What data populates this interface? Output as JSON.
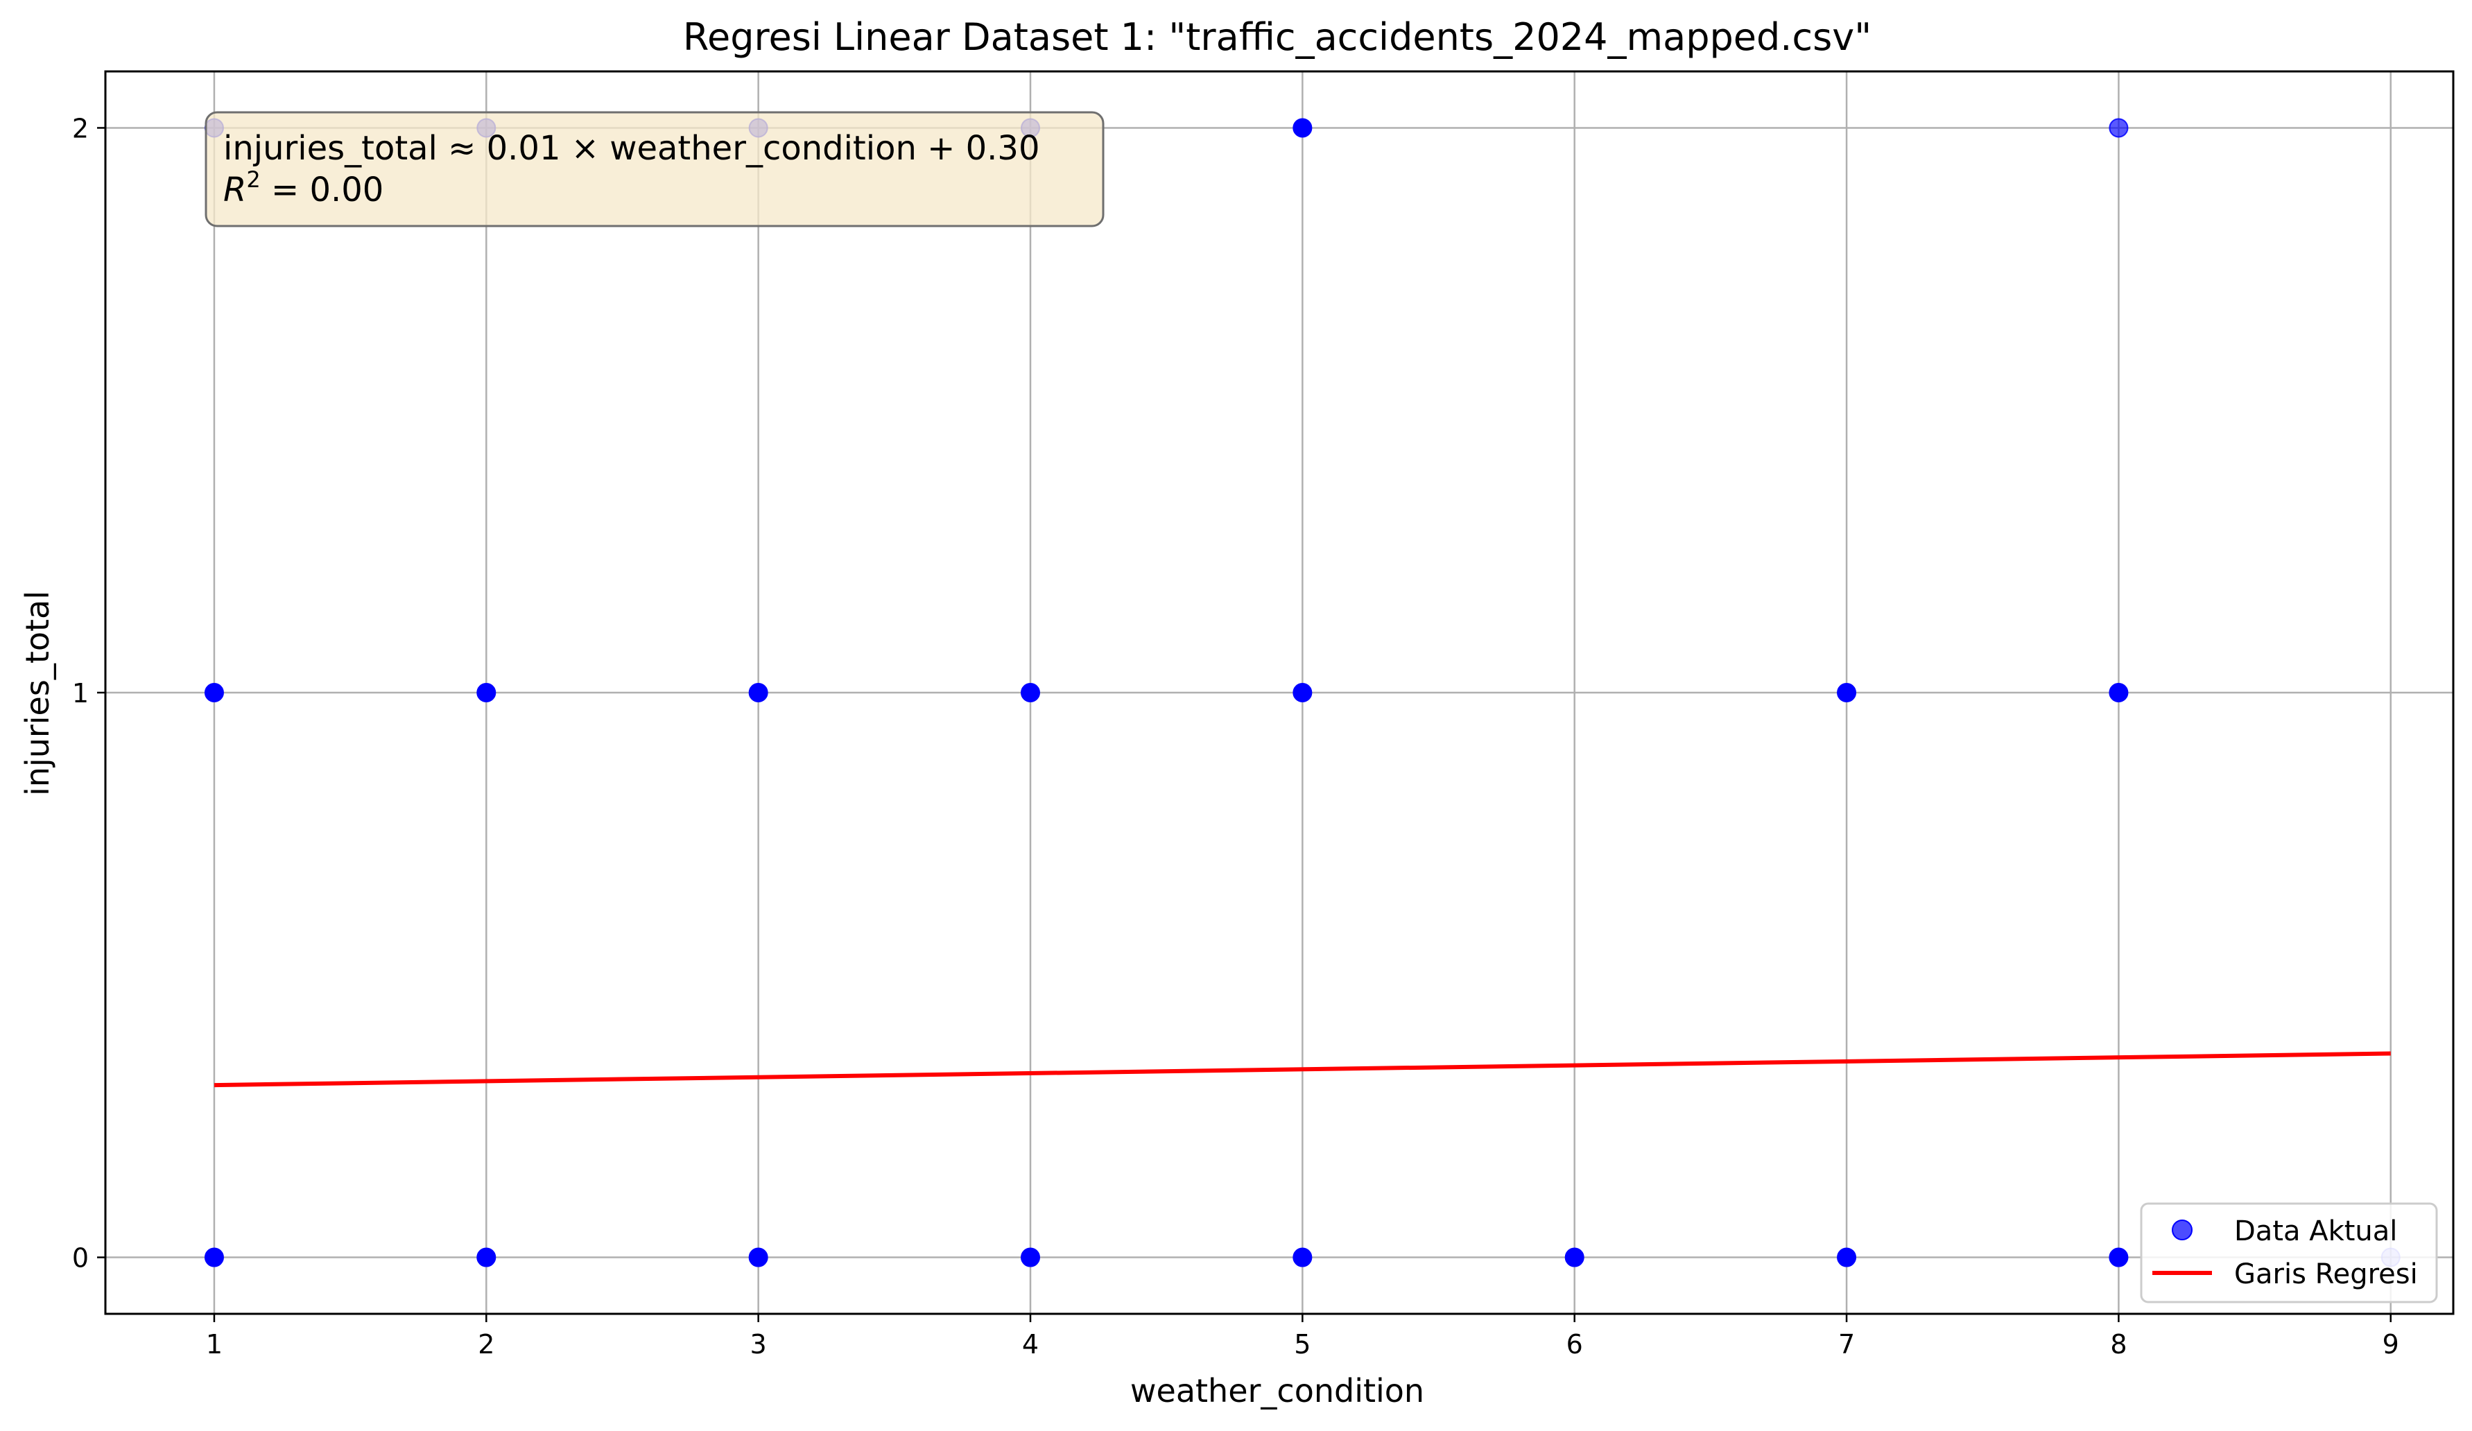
{
  "chart_data": {
    "type": "scatter",
    "title": "Regresi Linear Dataset 1: \"traffic_accidents_2024_mapped.csv\"",
    "xlabel": "weather_condition",
    "ylabel": "injuries_total",
    "xlim": [
      0.6,
      9.23
    ],
    "ylim": [
      -0.1,
      2.1
    ],
    "xticks": [
      1,
      2,
      3,
      4,
      5,
      6,
      7,
      8,
      9
    ],
    "yticks": [
      0,
      1,
      2
    ],
    "grid": true,
    "legend_position": "bottom-right",
    "annotation": {
      "line1": "injuries_total ≈ 0.01 × weather_condition + 0.30",
      "r2_symbol": "R",
      "r2_exponent": "2",
      "r2_value": " = 0.00",
      "box_fill": "#f6e8c9",
      "box_stroke": "#6f6f6f"
    },
    "series": [
      {
        "name": "Data Aktual",
        "kind": "scatter",
        "color": "#0000ff",
        "points": [
          {
            "x": 1,
            "y": 0,
            "opacity": 1.0
          },
          {
            "x": 2,
            "y": 0,
            "opacity": 1.0
          },
          {
            "x": 3,
            "y": 0,
            "opacity": 1.0
          },
          {
            "x": 4,
            "y": 0,
            "opacity": 1.0
          },
          {
            "x": 5,
            "y": 0,
            "opacity": 1.0
          },
          {
            "x": 6,
            "y": 0,
            "opacity": 1.0
          },
          {
            "x": 7,
            "y": 0,
            "opacity": 1.0
          },
          {
            "x": 8,
            "y": 0,
            "opacity": 1.0
          },
          {
            "x": 9,
            "y": 0,
            "opacity": 0.35
          },
          {
            "x": 1,
            "y": 1,
            "opacity": 1.0
          },
          {
            "x": 2,
            "y": 1,
            "opacity": 1.0
          },
          {
            "x": 3,
            "y": 1,
            "opacity": 1.0
          },
          {
            "x": 4,
            "y": 1,
            "opacity": 1.0
          },
          {
            "x": 5,
            "y": 1,
            "opacity": 1.0
          },
          {
            "x": 7,
            "y": 1,
            "opacity": 1.0
          },
          {
            "x": 8,
            "y": 1,
            "opacity": 1.0
          },
          {
            "x": 1,
            "y": 2,
            "opacity": 0.55
          },
          {
            "x": 2,
            "y": 2,
            "opacity": 0.55
          },
          {
            "x": 3,
            "y": 2,
            "opacity": 0.55
          },
          {
            "x": 4,
            "y": 2,
            "opacity": 0.55
          },
          {
            "x": 5,
            "y": 2,
            "opacity": 1.0
          },
          {
            "x": 8,
            "y": 2,
            "opacity": 0.65
          }
        ]
      },
      {
        "name": "Garis Regresi",
        "kind": "line",
        "color": "#ff0000",
        "x": [
          1,
          9
        ],
        "y": [
          0.305,
          0.361
        ]
      }
    ],
    "colors": {
      "grid": "#b0b0b0",
      "axes": "#000000",
      "legend_border": "#cccccc"
    }
  }
}
